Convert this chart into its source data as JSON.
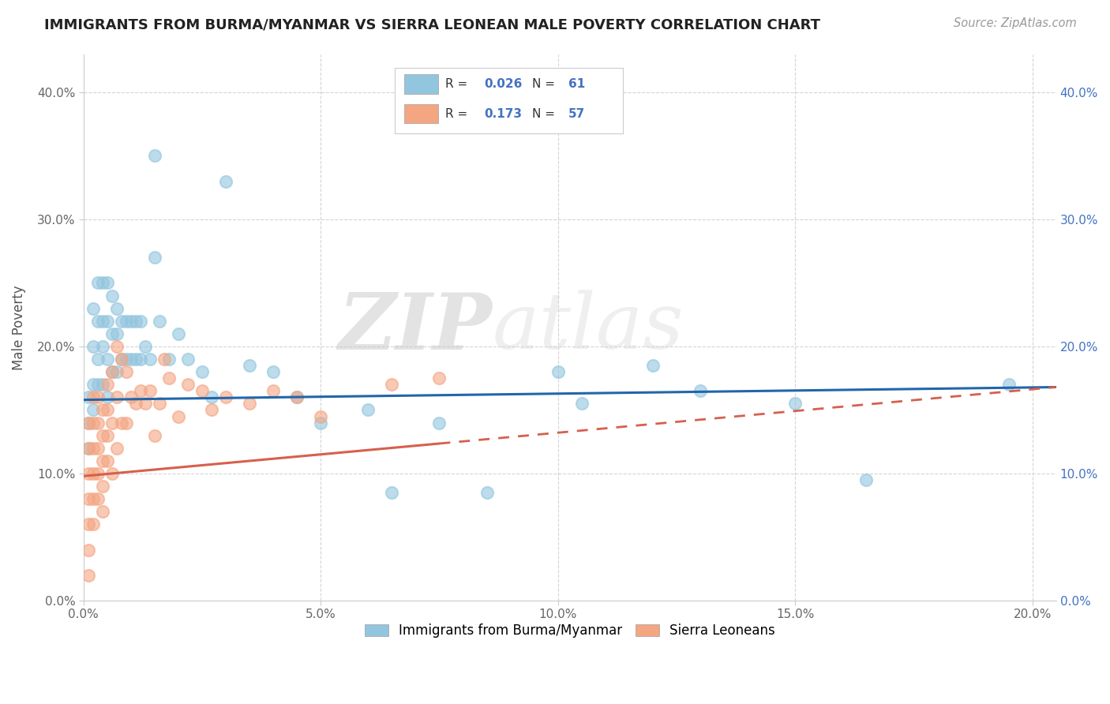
{
  "title": "IMMIGRANTS FROM BURMA/MYANMAR VS SIERRA LEONEAN MALE POVERTY CORRELATION CHART",
  "source": "Source: ZipAtlas.com",
  "ylabel": "Male Poverty",
  "xlim": [
    0.0,
    0.205
  ],
  "ylim": [
    0.0,
    0.43
  ],
  "xticks": [
    0.0,
    0.05,
    0.1,
    0.15,
    0.2
  ],
  "yticks": [
    0.0,
    0.1,
    0.2,
    0.3,
    0.4
  ],
  "xticklabels": [
    "0.0%",
    "5.0%",
    "10.0%",
    "15.0%",
    "20.0%"
  ],
  "yticklabels": [
    "0.0%",
    "10.0%",
    "20.0%",
    "30.0%",
    "40.0%"
  ],
  "blue_color": "#92c5de",
  "pink_color": "#f4a582",
  "blue_line_color": "#2166ac",
  "pink_line_color": "#d6604d",
  "R_blue": 0.026,
  "N_blue": 61,
  "R_pink": 0.173,
  "N_pink": 57,
  "watermark_zip": "ZIP",
  "watermark_atlas": "atlas",
  "background_color": "#ffffff",
  "grid_color": "#d0d0d0",
  "legend_blue_label": "Immigrants from Burma/Myanmar",
  "legend_pink_label": "Sierra Leoneans",
  "blue_line_start_y": 0.158,
  "blue_line_end_y": 0.168,
  "pink_line_start_y": 0.098,
  "pink_line_end_y": 0.168,
  "blue_x": [
    0.001,
    0.001,
    0.001,
    0.002,
    0.002,
    0.002,
    0.002,
    0.003,
    0.003,
    0.003,
    0.003,
    0.004,
    0.004,
    0.004,
    0.004,
    0.005,
    0.005,
    0.005,
    0.005,
    0.006,
    0.006,
    0.006,
    0.007,
    0.007,
    0.007,
    0.008,
    0.008,
    0.009,
    0.009,
    0.01,
    0.01,
    0.011,
    0.011,
    0.012,
    0.012,
    0.013,
    0.014,
    0.015,
    0.015,
    0.016,
    0.018,
    0.02,
    0.022,
    0.025,
    0.027,
    0.03,
    0.035,
    0.04,
    0.045,
    0.05,
    0.06,
    0.065,
    0.075,
    0.085,
    0.1,
    0.105,
    0.12,
    0.13,
    0.15,
    0.165,
    0.195
  ],
  "blue_y": [
    0.16,
    0.14,
    0.12,
    0.23,
    0.2,
    0.17,
    0.15,
    0.25,
    0.22,
    0.19,
    0.17,
    0.25,
    0.22,
    0.2,
    0.17,
    0.25,
    0.22,
    0.19,
    0.16,
    0.24,
    0.21,
    0.18,
    0.23,
    0.21,
    0.18,
    0.22,
    0.19,
    0.22,
    0.19,
    0.22,
    0.19,
    0.22,
    0.19,
    0.22,
    0.19,
    0.2,
    0.19,
    0.35,
    0.27,
    0.22,
    0.19,
    0.21,
    0.19,
    0.18,
    0.16,
    0.33,
    0.185,
    0.18,
    0.16,
    0.14,
    0.15,
    0.085,
    0.14,
    0.085,
    0.18,
    0.155,
    0.185,
    0.165,
    0.155,
    0.095,
    0.17
  ],
  "pink_x": [
    0.001,
    0.001,
    0.001,
    0.001,
    0.001,
    0.001,
    0.001,
    0.002,
    0.002,
    0.002,
    0.002,
    0.002,
    0.002,
    0.003,
    0.003,
    0.003,
    0.003,
    0.003,
    0.004,
    0.004,
    0.004,
    0.004,
    0.004,
    0.005,
    0.005,
    0.005,
    0.005,
    0.006,
    0.006,
    0.006,
    0.007,
    0.007,
    0.007,
    0.008,
    0.008,
    0.009,
    0.009,
    0.01,
    0.011,
    0.012,
    0.013,
    0.014,
    0.015,
    0.016,
    0.017,
    0.018,
    0.02,
    0.022,
    0.025,
    0.027,
    0.03,
    0.035,
    0.04,
    0.045,
    0.05,
    0.065,
    0.075
  ],
  "pink_y": [
    0.14,
    0.12,
    0.1,
    0.08,
    0.06,
    0.04,
    0.02,
    0.16,
    0.14,
    0.12,
    0.1,
    0.08,
    0.06,
    0.16,
    0.14,
    0.12,
    0.1,
    0.08,
    0.15,
    0.13,
    0.11,
    0.09,
    0.07,
    0.17,
    0.15,
    0.13,
    0.11,
    0.18,
    0.14,
    0.1,
    0.2,
    0.16,
    0.12,
    0.19,
    0.14,
    0.18,
    0.14,
    0.16,
    0.155,
    0.165,
    0.155,
    0.165,
    0.13,
    0.155,
    0.19,
    0.175,
    0.145,
    0.17,
    0.165,
    0.15,
    0.16,
    0.155,
    0.165,
    0.16,
    0.145,
    0.17,
    0.175
  ]
}
